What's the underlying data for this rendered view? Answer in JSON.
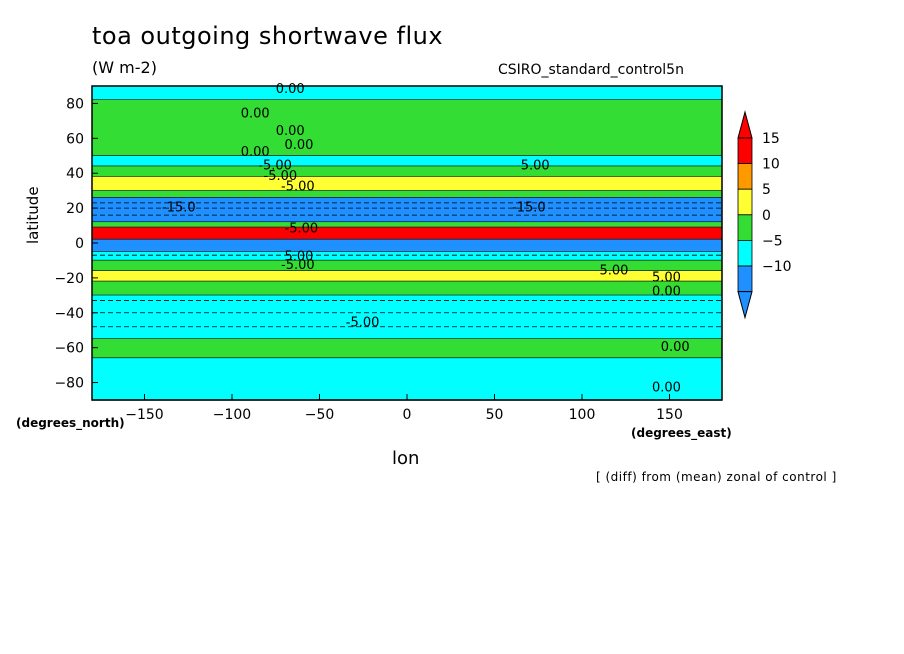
{
  "chart_data": {
    "type": "heatmap",
    "title": "toa outgoing shortwave flux",
    "units": "(W m-2)",
    "run_label": "CSIRO_standard_control5n",
    "xlabel": "lon",
    "ylabel": "latitude",
    "x_unit": "(degrees_east)",
    "y_unit": "(degrees_north)",
    "footnote": "[ (diff) from (mean) zonal of control ]",
    "xlim": [
      -180,
      180
    ],
    "ylim": [
      -90,
      90
    ],
    "xticks": [
      -150,
      -100,
      -50,
      0,
      50,
      100,
      150
    ],
    "yticks": [
      80,
      60,
      40,
      20,
      0,
      -20,
      -40,
      -60,
      -80
    ],
    "xtick_labels": [
      "−150",
      "−100",
      "−50",
      "0",
      "50",
      "100",
      "150"
    ],
    "ytick_labels": [
      "80",
      "60",
      "40",
      "20",
      "0",
      "−20",
      "−40",
      "−60",
      "−80"
    ],
    "colorbar": {
      "levels": [
        15,
        10,
        5,
        0,
        -5,
        -10
      ],
      "labels": [
        "15",
        "10",
        "5",
        "0",
        "−5",
        "−10"
      ],
      "colors": [
        "#ff0000",
        "#ff9900",
        "#ffff33",
        "#33dd33",
        "#00ffff",
        "#1e90ff"
      ],
      "over_color": "#ff0000",
      "under_color": "#1e90ff"
    },
    "zonal_bands": [
      {
        "lat": [
          82,
          90
        ],
        "class": "cyan"
      },
      {
        "lat": [
          50,
          82
        ],
        "class": "green"
      },
      {
        "lat": [
          44,
          50
        ],
        "class": "cyan"
      },
      {
        "lat": [
          38,
          44
        ],
        "class": "green"
      },
      {
        "lat": [
          30,
          38
        ],
        "class": "yellow"
      },
      {
        "lat": [
          26,
          30
        ],
        "class": "green"
      },
      {
        "lat": [
          12,
          26
        ],
        "class": "blue"
      },
      {
        "lat": [
          9,
          12
        ],
        "class": "green"
      },
      {
        "lat": [
          2,
          9
        ],
        "class": "red"
      },
      {
        "lat": [
          -5,
          2
        ],
        "class": "blue"
      },
      {
        "lat": [
          -10,
          -5
        ],
        "class": "cyan"
      },
      {
        "lat": [
          -16,
          -10
        ],
        "class": "green"
      },
      {
        "lat": [
          -22,
          -16
        ],
        "class": "yellow"
      },
      {
        "lat": [
          -30,
          -22
        ],
        "class": "green"
      },
      {
        "lat": [
          -55,
          -30
        ],
        "class": "cyan"
      },
      {
        "lat": [
          -66,
          -55
        ],
        "class": "green"
      },
      {
        "lat": [
          -90,
          -66
        ],
        "class": "cyan"
      }
    ],
    "contour_labels": [
      "0.00",
      "0.00",
      "0.00",
      "0.00",
      "0.00",
      "-5.00",
      "5.00",
      "-5.00",
      "-5.00",
      "-15.0",
      "-15.0",
      "-5.00",
      "5.00",
      "-5.00",
      "5.00",
      "5.00",
      "0.00",
      "-5.00",
      "0.00",
      "0.00"
    ]
  }
}
